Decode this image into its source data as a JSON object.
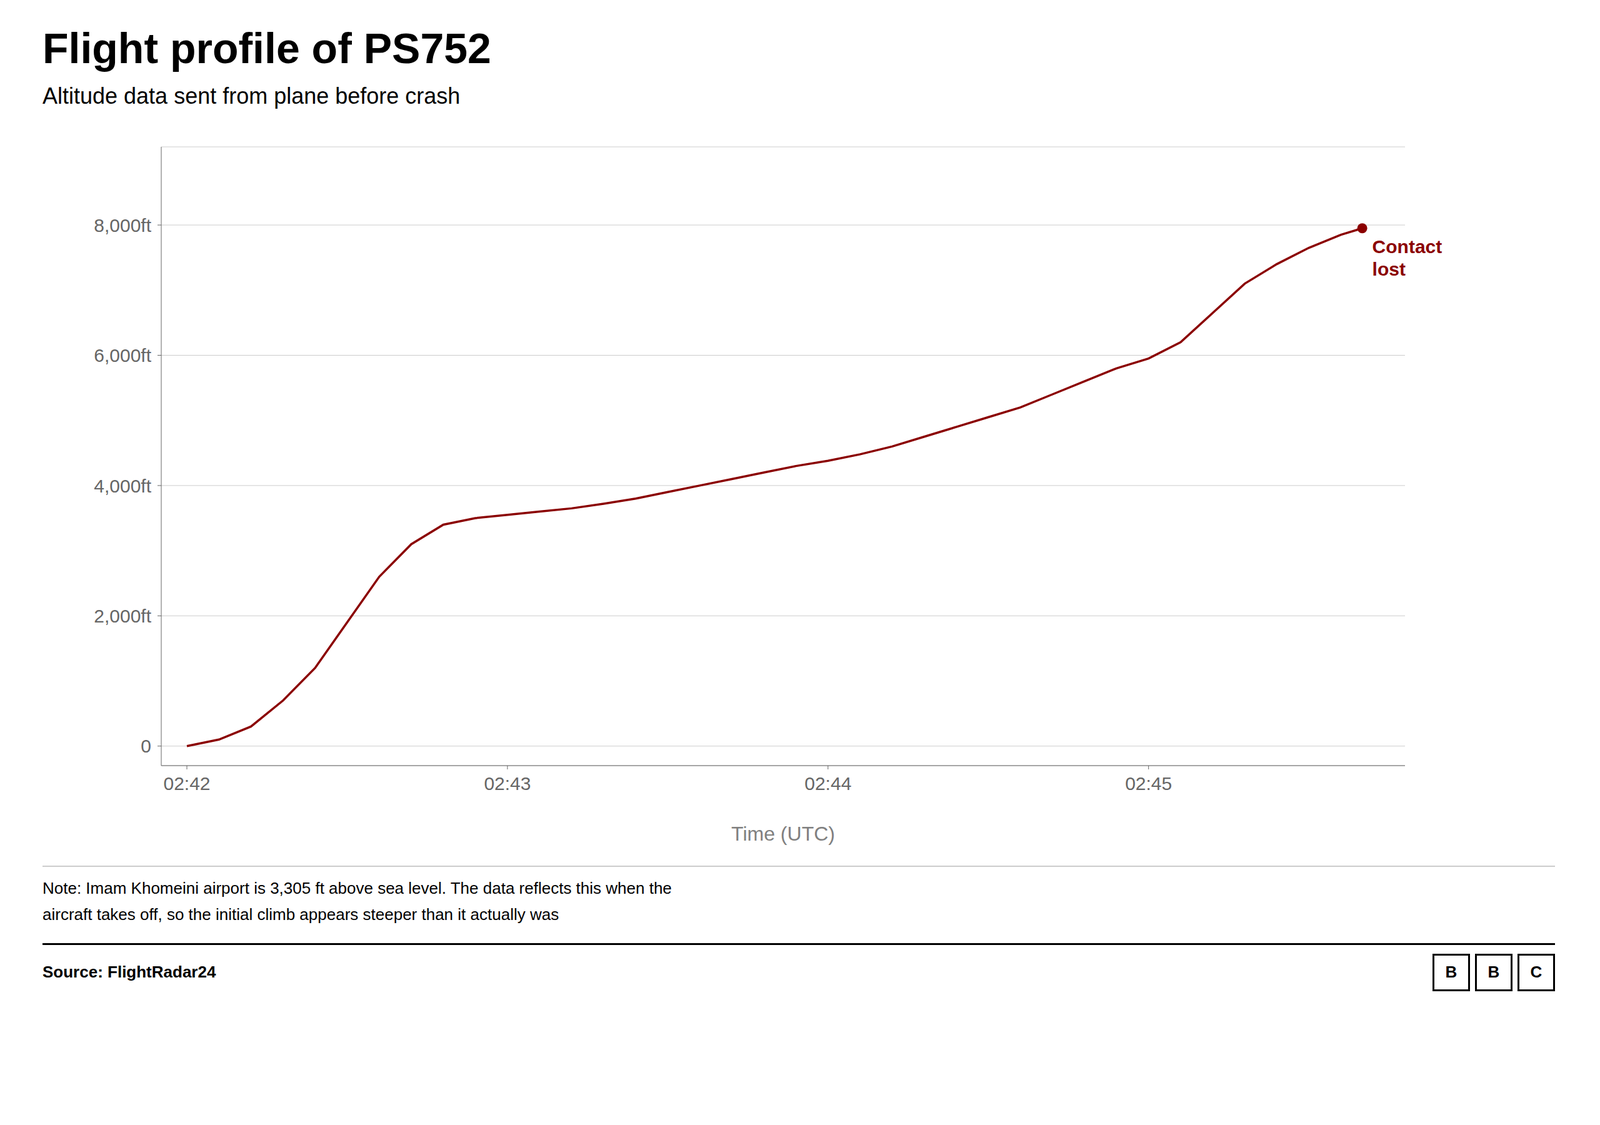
{
  "chart_data": {
    "type": "line",
    "title": "Flight profile of PS752",
    "subtitle": "Altitude data sent from plane before crash",
    "x_label": "Time (UTC)",
    "note": "Note: Imam Khomeini airport is 3,305 ft above sea level. The data reflects this when the\naircraft takes off, so the initial climb appears steeper than it actually was",
    "source": "Source: FlightRadar24",
    "logo": "BBC",
    "x": [
      0,
      6,
      12,
      18,
      24,
      30,
      36,
      42,
      48,
      54,
      60,
      66,
      72,
      78,
      84,
      90,
      96,
      102,
      108,
      114,
      120,
      126,
      132,
      138,
      144,
      150,
      156,
      162,
      168,
      174,
      180,
      186,
      192,
      198,
      204,
      210,
      216,
      220
    ],
    "values": [
      0,
      100,
      300,
      700,
      1200,
      1900,
      2600,
      3100,
      3400,
      3500,
      3550,
      3600,
      3650,
      3720,
      3800,
      3900,
      4000,
      4100,
      4200,
      4300,
      4380,
      4480,
      4600,
      4750,
      4900,
      5050,
      5200,
      5400,
      5600,
      5800,
      5950,
      6200,
      6650,
      7100,
      7400,
      7650,
      7850,
      7950
    ],
    "color": "#8B0000",
    "xlim": [
      -4.8,
      228
    ],
    "xticks": [
      {
        "value": 0,
        "label": "02:42"
      },
      {
        "value": 60,
        "label": "02:43"
      },
      {
        "value": 120,
        "label": "02:44"
      },
      {
        "value": 180,
        "label": "02:45"
      }
    ],
    "ylim": [
      -300,
      9200
    ],
    "yticks": [
      0,
      {
        "value": 2000,
        "label": "2,000ft"
      },
      {
        "value": 4000,
        "label": "4,000ft"
      },
      {
        "value": 6000,
        "label": "6,000ft"
      },
      {
        "value": 8000,
        "label": "8,000ft"
      }
    ],
    "grid": true,
    "annotations": [
      {
        "text": "Contact\nlost",
        "x": 220,
        "y": 7950,
        "color": "#8B0000"
      }
    ]
  }
}
